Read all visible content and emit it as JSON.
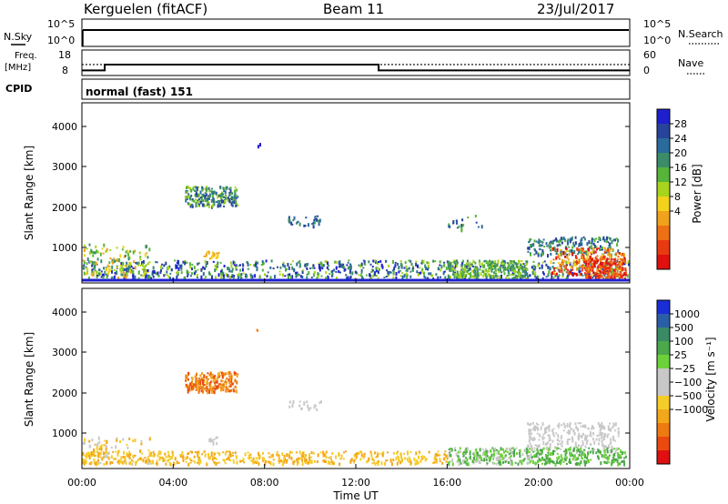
{
  "header": {
    "station": "Kerguelen (fitACF)",
    "beam": "Beam 11",
    "date": "23/Jul/2017"
  },
  "noise_panel": {
    "left_label": "N.Sky",
    "right_label": "N.Search",
    "left_ticks": [
      "10^5",
      "10^0"
    ],
    "right_ticks": [
      "10^5",
      "10^0"
    ]
  },
  "freq_panel": {
    "left_label_1": "Freq.",
    "left_label_2": "[MHz]",
    "right_label": "Nave",
    "left_ticks": [
      "18",
      "8"
    ],
    "right_ticks": [
      "60",
      "0"
    ]
  },
  "cpid": {
    "label": "CPID",
    "text": "normal (fast) 151"
  },
  "power_panel": {
    "ylabel": "Slant Range [km]",
    "yticks": [
      "4000",
      "3000",
      "2000",
      "1000"
    ],
    "colorbar_label": "Power [dB]",
    "colorbar_ticks": [
      "28",
      "24",
      "20",
      "16",
      "12",
      "8",
      "4"
    ],
    "colors": [
      "#1f1fd0",
      "#27449a",
      "#2a6b9c",
      "#3b8d6a",
      "#57b43a",
      "#a8d41e",
      "#f2d21a",
      "#f0a21c",
      "#ee6f14",
      "#e83a10",
      "#e01010"
    ]
  },
  "velocity_panel": {
    "ylabel": "Slant Range [km]",
    "yticks": [
      "4000",
      "3000",
      "2000",
      "1000"
    ],
    "colorbar_label": "Velocity [m s⁻¹]",
    "colorbar_ticks": [
      "1000",
      "500",
      "100",
      "25",
      "−25",
      "−100",
      "−500",
      "−1000"
    ],
    "colors": [
      "#1a2ed8",
      "#2a5fa8",
      "#3a8a66",
      "#4ba84b",
      "#6dd23a",
      "#c8c8c8",
      "#c8c8c8",
      "#f6cc2a",
      "#f2a81a",
      "#ee7a12",
      "#ea4a10",
      "#e01010"
    ]
  },
  "xaxis": {
    "label": "Time UT",
    "ticks": [
      "00:00",
      "04:00",
      "08:00",
      "12:00",
      "16:00",
      "20:00",
      "00:00"
    ]
  },
  "chart_data": [
    {
      "type": "line",
      "panel": "noise",
      "series": [
        {
          "values_note": "N.Sky roughly constant near top of log scale"
        }
      ],
      "ylim_labels": [
        "10^0",
        "10^5"
      ],
      "x_hours": [
        0,
        24
      ],
      "n_sky_constant_level_fraction": 0.85
    },
    {
      "type": "line",
      "panel": "frequency",
      "x_hours": [
        0,
        1,
        1,
        13,
        13,
        24
      ],
      "freq_mhz": [
        10,
        10,
        12.3,
        12.3,
        10,
        10
      ],
      "nave_dotted": [
        12.3,
        12.3,
        12.3,
        12.3,
        12.3,
        12.3
      ],
      "ylim": [
        8,
        18
      ]
    },
    {
      "type": "heatmap",
      "panel": "power",
      "xlim_hours": [
        0,
        24
      ],
      "ylim_km": [
        180,
        4500
      ],
      "zlim_db": [
        0,
        32
      ]
    },
    {
      "type": "heatmap",
      "panel": "velocity",
      "xlim_hours": [
        0,
        24
      ],
      "ylim_km": [
        180,
        4500
      ],
      "zlim_ms": [
        -1200,
        1200
      ]
    }
  ]
}
